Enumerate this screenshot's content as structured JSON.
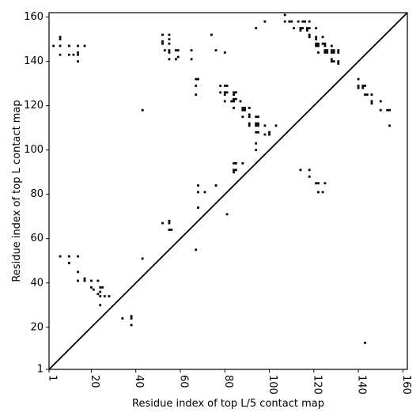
{
  "chart_data": {
    "type": "scatter",
    "title": "",
    "xlabel": "Residue index of top L/5 contact map",
    "ylabel": "Residue index of top L contact map",
    "xlim": [
      1,
      162
    ],
    "ylim": [
      1,
      162
    ],
    "xticks": [
      1,
      20,
      40,
      60,
      80,
      100,
      120,
      140,
      160
    ],
    "yticks": [
      1,
      20,
      40,
      60,
      80,
      100,
      120,
      140,
      160
    ],
    "grid": false,
    "marker_color": "#000000",
    "diagonal_line": {
      "from": [
        1,
        1
      ],
      "to": [
        162,
        162
      ]
    },
    "points": [
      [
        3,
        147
      ],
      [
        6,
        151
      ],
      [
        6,
        150
      ],
      [
        6,
        147
      ],
      [
        6,
        143
      ],
      [
        10,
        147
      ],
      [
        10,
        143
      ],
      [
        12,
        143
      ],
      [
        14,
        147
      ],
      [
        14,
        144
      ],
      [
        14,
        143
      ],
      [
        14,
        140
      ],
      [
        17,
        147
      ],
      [
        6,
        52
      ],
      [
        10,
        52
      ],
      [
        10,
        49
      ],
      [
        14,
        52
      ],
      [
        14,
        45
      ],
      [
        14,
        41
      ],
      [
        17,
        42
      ],
      [
        17,
        41
      ],
      [
        20,
        41
      ],
      [
        20,
        38
      ],
      [
        21,
        37
      ],
      [
        23,
        41
      ],
      [
        23,
        35
      ],
      [
        24,
        38
      ],
      [
        24,
        36
      ],
      [
        24,
        34
      ],
      [
        24,
        30
      ],
      [
        25,
        38
      ],
      [
        26,
        34
      ],
      [
        28,
        34
      ],
      [
        34,
        24
      ],
      [
        38,
        25
      ],
      [
        38,
        24
      ],
      [
        38,
        21
      ],
      [
        43,
        118
      ],
      [
        43,
        51
      ],
      [
        52,
        152
      ],
      [
        52,
        149
      ],
      [
        52,
        148
      ],
      [
        53,
        145
      ],
      [
        55,
        152
      ],
      [
        55,
        150
      ],
      [
        55,
        148
      ],
      [
        55,
        145
      ],
      [
        55,
        144
      ],
      [
        55,
        141
      ],
      [
        58,
        145
      ],
      [
        58,
        141
      ],
      [
        59,
        145
      ],
      [
        59,
        142
      ],
      [
        65,
        145
      ],
      [
        65,
        141
      ],
      [
        52,
        67
      ],
      [
        55,
        68
      ],
      [
        55,
        67
      ],
      [
        55,
        64
      ],
      [
        56,
        64
      ],
      [
        67,
        132
      ],
      [
        67,
        129
      ],
      [
        67,
        125
      ],
      [
        68,
        132
      ],
      [
        67,
        55
      ],
      [
        68,
        84
      ],
      [
        68,
        81
      ],
      [
        68,
        74
      ],
      [
        71,
        81
      ],
      [
        74,
        152
      ],
      [
        76,
        145
      ],
      [
        76,
        84
      ],
      [
        78,
        129
      ],
      [
        78,
        126
      ],
      [
        80,
        144
      ],
      [
        80,
        129
      ],
      [
        80,
        126
      ],
      [
        80,
        125
      ],
      [
        80,
        122
      ],
      [
        81,
        129
      ],
      [
        81,
        126
      ],
      [
        81,
        71
      ],
      [
        83,
        122
      ],
      [
        84,
        126
      ],
      [
        84,
        125
      ],
      [
        84,
        123
      ],
      [
        84,
        122
      ],
      [
        84,
        119
      ],
      [
        84,
        94
      ],
      [
        84,
        91
      ],
      [
        84,
        90
      ],
      [
        85,
        126
      ],
      [
        85,
        123
      ],
      [
        85,
        94
      ],
      [
        85,
        91
      ],
      [
        87,
        122
      ],
      [
        88,
        119
      ],
      [
        88,
        118
      ],
      [
        88,
        115
      ],
      [
        88,
        94
      ],
      [
        89,
        119
      ],
      [
        89,
        118
      ],
      [
        91,
        119
      ],
      [
        91,
        116
      ],
      [
        91,
        115
      ],
      [
        91,
        112
      ],
      [
        91,
        111
      ],
      [
        94,
        155
      ],
      [
        94,
        115
      ],
      [
        94,
        112
      ],
      [
        94,
        111
      ],
      [
        94,
        108
      ],
      [
        94,
        103
      ],
      [
        94,
        100
      ],
      [
        95,
        115
      ],
      [
        95,
        112
      ],
      [
        95,
        111
      ],
      [
        95,
        108
      ],
      [
        98,
        158
      ],
      [
        98,
        111
      ],
      [
        98,
        107
      ],
      [
        100,
        108
      ],
      [
        100,
        107
      ],
      [
        103,
        111
      ],
      [
        107,
        161
      ],
      [
        107,
        158
      ],
      [
        109,
        158
      ],
      [
        110,
        158
      ],
      [
        111,
        155
      ],
      [
        113,
        158
      ],
      [
        114,
        155
      ],
      [
        114,
        154
      ],
      [
        115,
        158
      ],
      [
        115,
        155
      ],
      [
        116,
        158
      ],
      [
        117,
        155
      ],
      [
        117,
        154
      ],
      [
        118,
        158
      ],
      [
        118,
        155
      ],
      [
        118,
        152
      ],
      [
        118,
        151
      ],
      [
        121,
        155
      ],
      [
        121,
        151
      ],
      [
        121,
        150
      ],
      [
        121,
        148
      ],
      [
        121,
        147
      ],
      [
        122,
        148
      ],
      [
        122,
        147
      ],
      [
        122,
        144
      ],
      [
        124,
        151
      ],
      [
        124,
        148
      ],
      [
        125,
        148
      ],
      [
        125,
        147
      ],
      [
        125,
        145
      ],
      [
        125,
        144
      ],
      [
        126,
        145
      ],
      [
        126,
        144
      ],
      [
        128,
        147
      ],
      [
        128,
        145
      ],
      [
        128,
        144
      ],
      [
        128,
        141
      ],
      [
        128,
        140
      ],
      [
        129,
        145
      ],
      [
        129,
        144
      ],
      [
        129,
        140
      ],
      [
        131,
        145
      ],
      [
        131,
        144
      ],
      [
        131,
        140
      ],
      [
        131,
        139
      ],
      [
        114,
        91
      ],
      [
        118,
        91
      ],
      [
        118,
        88
      ],
      [
        121,
        85
      ],
      [
        122,
        85
      ],
      [
        122,
        81
      ],
      [
        124,
        81
      ],
      [
        125,
        85
      ],
      [
        140,
        132
      ],
      [
        140,
        129
      ],
      [
        140,
        128
      ],
      [
        142,
        129
      ],
      [
        142,
        128
      ],
      [
        143,
        129
      ],
      [
        143,
        125
      ],
      [
        144,
        125
      ],
      [
        146,
        125
      ],
      [
        146,
        122
      ],
      [
        146,
        121
      ],
      [
        150,
        122
      ],
      [
        150,
        118
      ],
      [
        153,
        118
      ],
      [
        154,
        118
      ],
      [
        154,
        111
      ],
      [
        143,
        13
      ]
    ]
  }
}
